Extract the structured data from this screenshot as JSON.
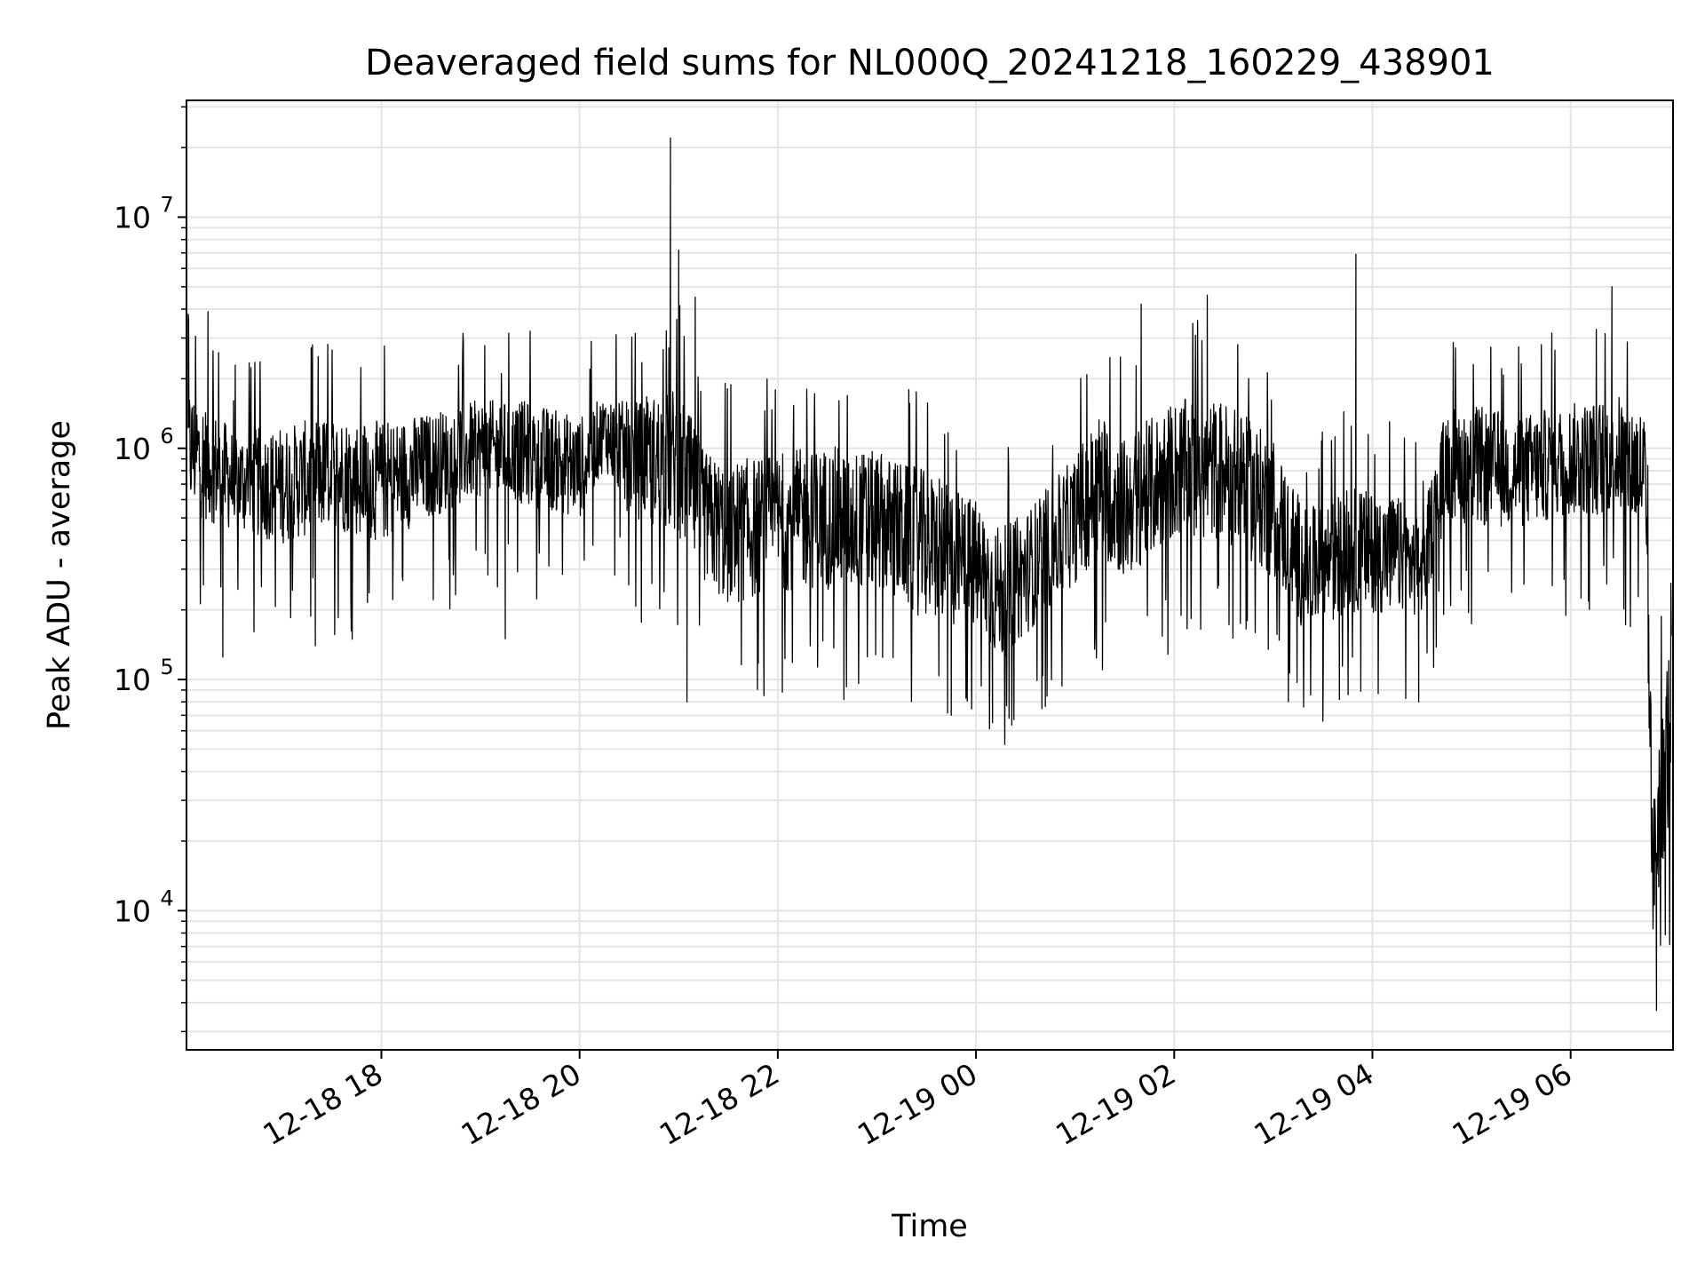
{
  "chart_data": {
    "type": "line",
    "title": "Deaveraged field sums for NL000Q_20241218_160229_438901",
    "xlabel": "Time",
    "ylabel": "Peak ADU - average",
    "y_scale": "log",
    "ylim": [
      2500,
      32000000
    ],
    "xlim": [
      "2024-12-18 16:02",
      "2024-12-19 07:02"
    ],
    "grid": true,
    "legend": "none",
    "colors": {
      "line": "#000000",
      "grid": "#e5e5e5",
      "axes": "#000000"
    },
    "x_ticks": [
      {
        "time": "2024-12-18 18:00",
        "label": "12-18 18"
      },
      {
        "time": "2024-12-18 20:00",
        "label": "12-18 20"
      },
      {
        "time": "2024-12-18 22:00",
        "label": "12-18 22"
      },
      {
        "time": "2024-12-19 00:00",
        "label": "12-19 00"
      },
      {
        "time": "2024-12-19 02:00",
        "label": "12-19 02"
      },
      {
        "time": "2024-12-19 04:00",
        "label": "12-19 04"
      },
      {
        "time": "2024-12-19 06:00",
        "label": "12-19 06"
      }
    ],
    "y_ticks": [
      {
        "value": 10000,
        "base": "10",
        "exp": "4"
      },
      {
        "value": 100000,
        "base": "10",
        "exp": "5"
      },
      {
        "value": 1000000,
        "base": "10",
        "exp": "6"
      },
      {
        "value": 10000000,
        "base": "10",
        "exp": "7"
      }
    ],
    "series_envelope": {
      "description_of_values": "time, typical low, typical high (Peak ADU - average)",
      "points": [
        [
          "2024-12-18 16:03",
          400000,
          2500000
        ],
        [
          "2024-12-18 16:30",
          350000,
          1500000
        ],
        [
          "2024-12-18 17:00",
          300000,
          1600000
        ],
        [
          "2024-12-18 17:30",
          350000,
          1800000
        ],
        [
          "2024-12-18 18:00",
          300000,
          1700000
        ],
        [
          "2024-12-18 18:30",
          400000,
          1800000
        ],
        [
          "2024-12-18 19:00",
          500000,
          2000000
        ],
        [
          "2024-12-18 19:30",
          450000,
          2000000
        ],
        [
          "2024-12-18 20:00",
          400000,
          1700000
        ],
        [
          "2024-12-18 20:15",
          700000,
          2000000
        ],
        [
          "2024-12-18 20:30",
          400000,
          2000000
        ],
        [
          "2024-12-18 21:00",
          300000,
          2600000
        ],
        [
          "2024-12-18 21:15",
          200000,
          1300000
        ],
        [
          "2024-12-18 21:30",
          150000,
          1200000
        ],
        [
          "2024-12-18 22:00",
          180000,
          1300000
        ],
        [
          "2024-12-18 22:30",
          180000,
          1400000
        ],
        [
          "2024-12-18 23:00",
          180000,
          1300000
        ],
        [
          "2024-12-18 23:30",
          130000,
          1100000
        ],
        [
          "2024-12-19 00:00",
          120000,
          800000
        ],
        [
          "2024-12-19 00:15",
          90000,
          600000
        ],
        [
          "2024-12-19 00:30",
          120000,
          700000
        ],
        [
          "2024-12-19 01:00",
          200000,
          1200000
        ],
        [
          "2024-12-19 01:15",
          250000,
          2000000
        ],
        [
          "2024-12-19 01:30",
          200000,
          1500000
        ],
        [
          "2024-12-19 02:00",
          300000,
          2200000
        ],
        [
          "2024-12-19 02:30",
          300000,
          2200000
        ],
        [
          "2024-12-19 03:00",
          200000,
          1500000
        ],
        [
          "2024-12-19 03:20",
          120000,
          700000
        ],
        [
          "2024-12-19 03:45",
          150000,
          900000
        ],
        [
          "2024-12-19 04:15",
          150000,
          800000
        ],
        [
          "2024-12-19 04:30",
          150000,
          600000
        ],
        [
          "2024-12-19 04:45",
          400000,
          2000000
        ],
        [
          "2024-12-19 05:00",
          350000,
          2000000
        ],
        [
          "2024-12-19 05:30",
          350000,
          1800000
        ],
        [
          "2024-12-19 06:00",
          400000,
          2000000
        ],
        [
          "2024-12-19 06:30",
          400000,
          2200000
        ],
        [
          "2024-12-19 06:45",
          300000,
          2000000
        ],
        [
          "2024-12-19 06:50",
          5000,
          40000
        ],
        [
          "2024-12-19 06:55",
          10000,
          150000
        ],
        [
          "2024-12-19 07:01",
          15000,
          250000
        ]
      ]
    },
    "spikes": [
      [
        "2024-12-18 16:03",
        3800000
      ],
      [
        "2024-12-18 16:15",
        3900000
      ],
      [
        "2024-12-18 16:24",
        125000
      ],
      [
        "2024-12-18 17:20",
        140000
      ],
      [
        "2024-12-18 19:15",
        150000
      ],
      [
        "2024-12-18 20:55",
        22000000
      ],
      [
        "2024-12-18 21:00",
        7200000
      ],
      [
        "2024-12-18 21:05",
        80000
      ],
      [
        "2024-12-18 21:10",
        4500000
      ],
      [
        "2024-12-18 22:40",
        82000
      ],
      [
        "2024-12-18 23:45",
        70000
      ],
      [
        "2024-12-19 00:10",
        65000
      ],
      [
        "2024-12-19 00:20",
        68000
      ],
      [
        "2024-12-19 01:40",
        4200000
      ],
      [
        "2024-12-19 02:20",
        4600000
      ],
      [
        "2024-12-19 03:30",
        66000
      ],
      [
        "2024-12-19 03:50",
        6900000
      ],
      [
        "2024-12-19 03:40",
        82000
      ],
      [
        "2024-12-19 04:28",
        80000
      ],
      [
        "2024-12-19 06:25",
        5000000
      ],
      [
        "2024-12-19 06:52",
        3700
      ]
    ]
  }
}
